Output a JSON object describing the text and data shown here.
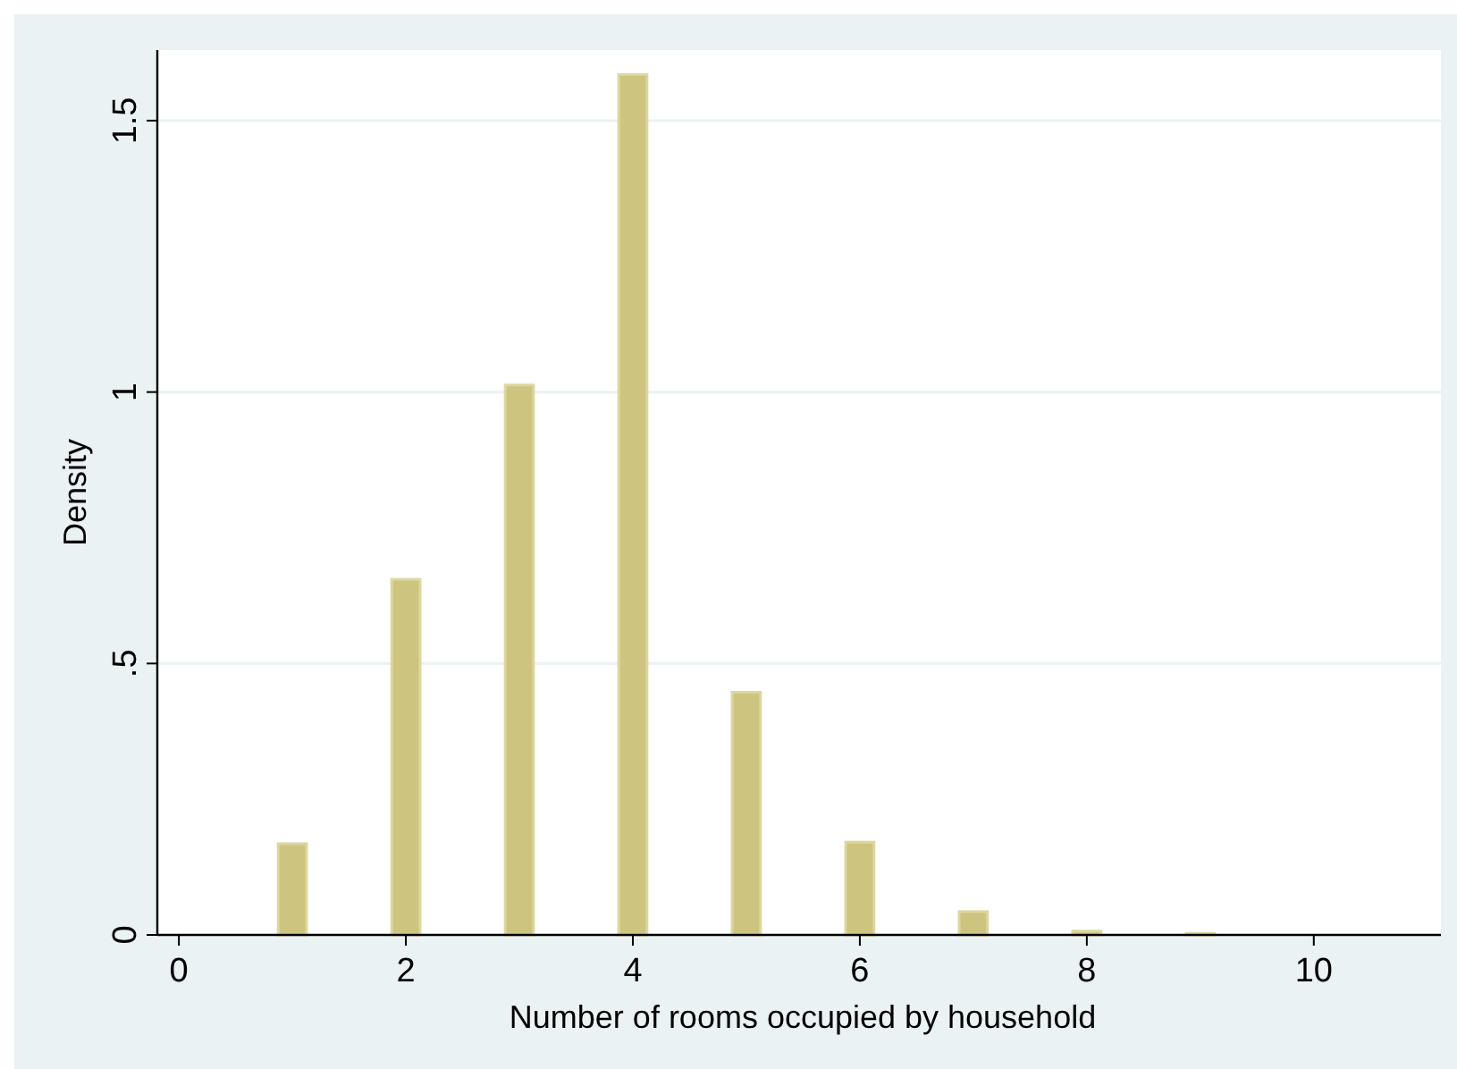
{
  "chart_data": {
    "type": "bar",
    "xlabel": "Number of rooms occupied by household",
    "ylabel": "Density",
    "x": [
      1,
      2,
      3,
      4,
      5,
      6,
      7,
      8,
      9
    ],
    "values": [
      0.168,
      0.655,
      1.013,
      1.585,
      0.447,
      0.171,
      0.043,
      0.007,
      0.003
    ],
    "color": "#cdc47f",
    "xlim": [
      -0.19,
      11.12
    ],
    "xticks": [
      0,
      2,
      4,
      6,
      8,
      10
    ],
    "ylim": [
      0,
      1.63
    ],
    "yticks": [
      0,
      {
        "value": 0.5,
        "label": ".5"
      },
      1,
      1.5
    ],
    "grid": "y"
  }
}
